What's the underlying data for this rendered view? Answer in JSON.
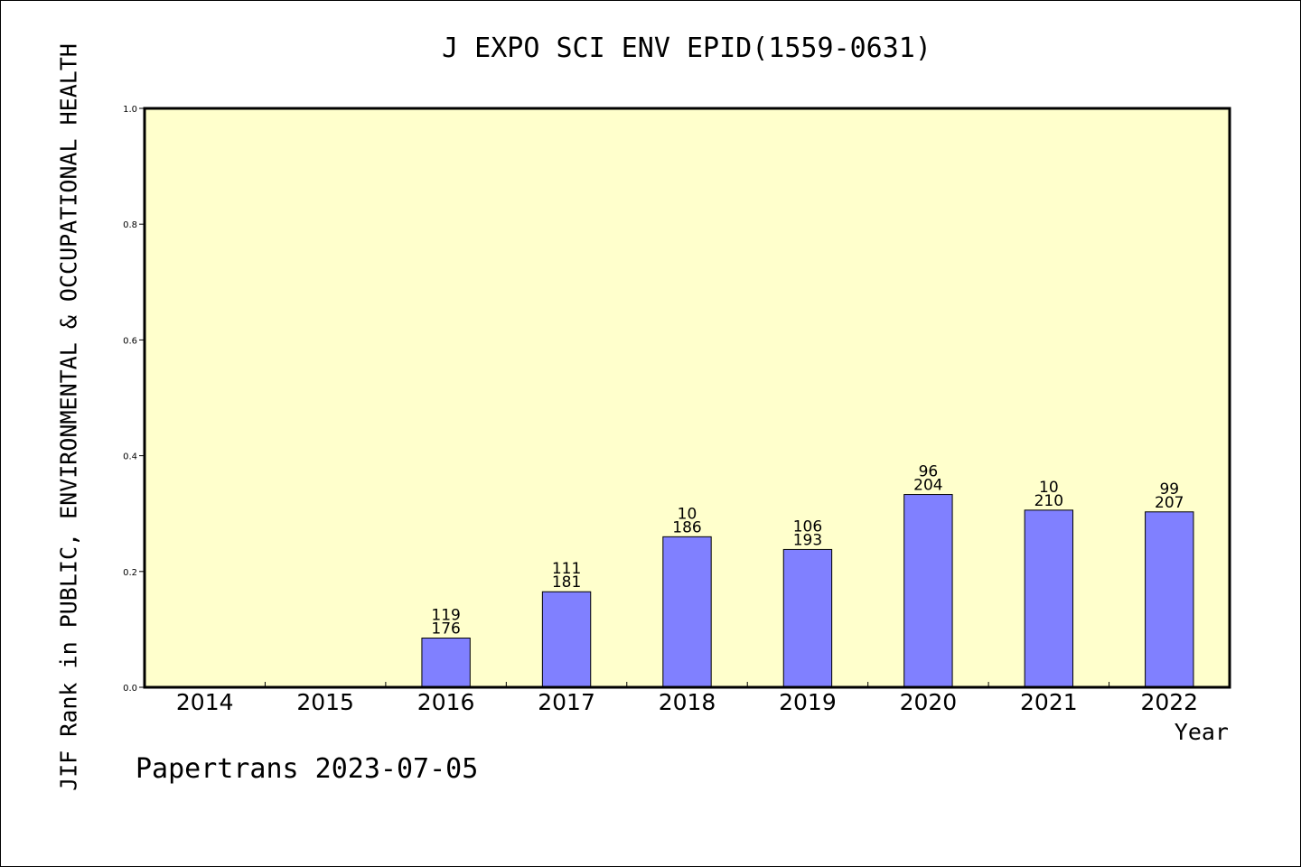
{
  "chart_data": {
    "type": "bar",
    "title": "J EXPO SCI ENV EPID(1559-0631)",
    "ylabel": "JIF Rank in PUBLIC, ENVIRONMENTAL & OCCUPATIONAL HEALTH",
    "xlabel": "Year",
    "ylim": [
      0,
      1.0
    ],
    "yticks": [
      "0.0",
      "0.2",
      "0.4",
      "0.6",
      "0.8",
      "1.0"
    ],
    "categories": [
      "2014",
      "2015",
      "2016",
      "2017",
      "2018",
      "2019",
      "2020",
      "2021",
      "2022"
    ],
    "values": [
      null,
      null,
      0.085,
      0.165,
      0.26,
      0.238,
      0.333,
      0.306,
      0.303
    ],
    "rank_labels": [
      "",
      "",
      "119",
      "111",
      "10",
      "106",
      "96",
      "10",
      "99"
    ],
    "total_labels": [
      "",
      "",
      "176",
      "181",
      "186",
      "193",
      "204",
      "210",
      "207"
    ],
    "grid": false,
    "legend": "none",
    "bar_color": "#8080ff",
    "plot_background": "#ffffcc"
  },
  "footer": "Papertrans 2023-07-05"
}
